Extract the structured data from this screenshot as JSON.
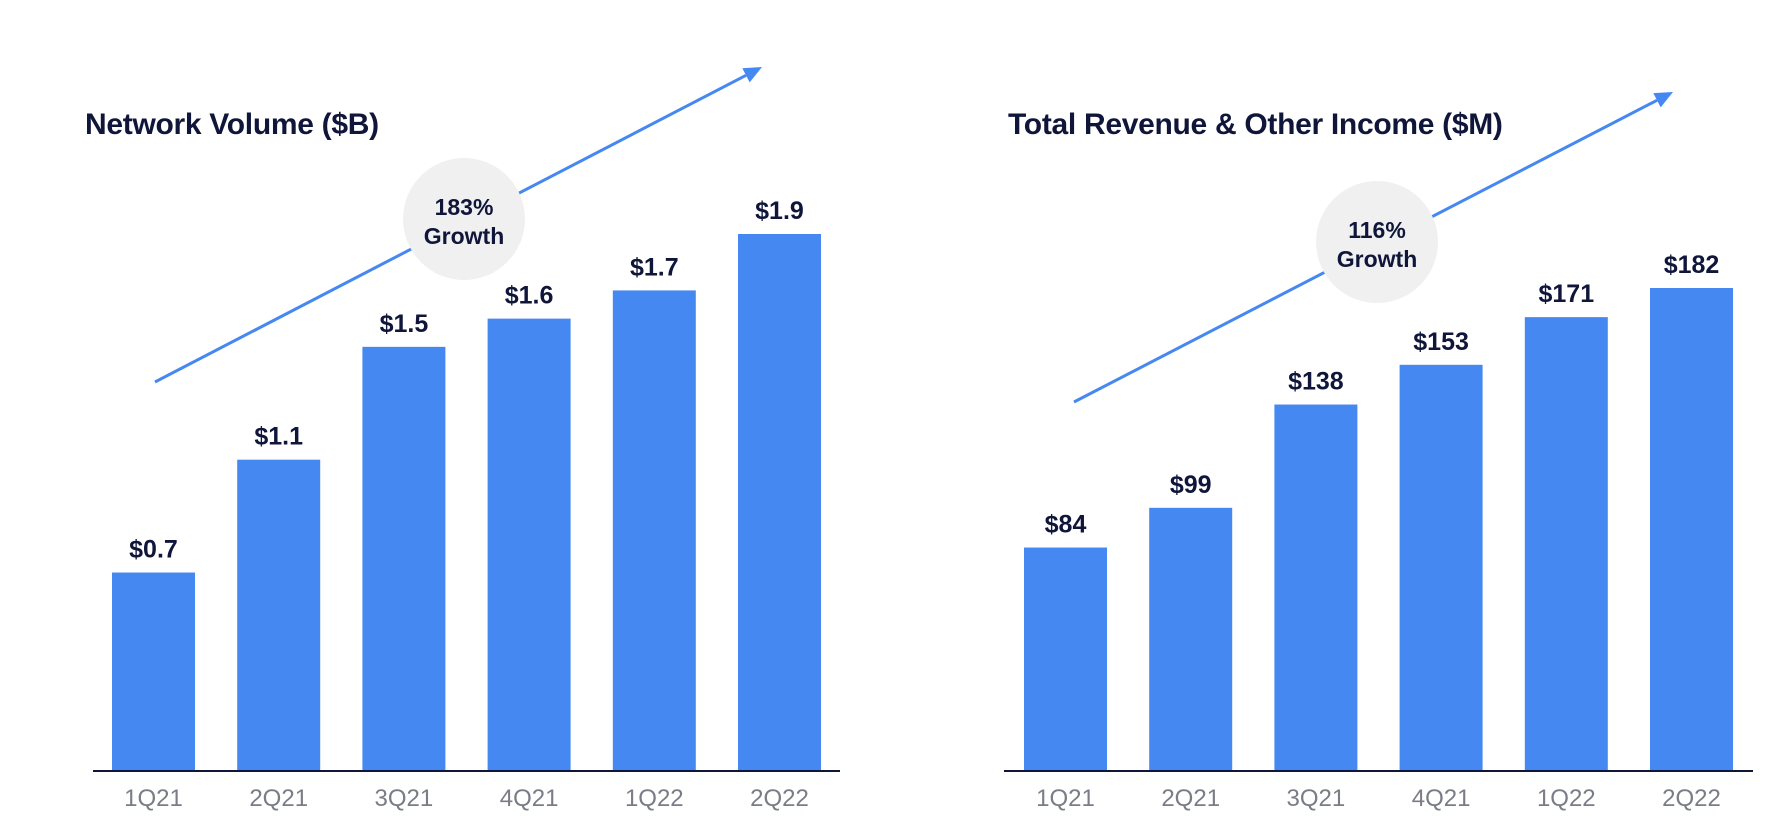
{
  "colors": {
    "bar": "#4688f1",
    "arrow": "#4688f1",
    "axis": "#10163a",
    "growth_circle": "#f0f0f0"
  },
  "chart_data": [
    {
      "type": "bar",
      "title": "Network Volume ($B)",
      "categories": [
        "1Q21",
        "2Q21",
        "3Q21",
        "4Q21",
        "1Q22",
        "2Q22"
      ],
      "values": [
        0.7,
        1.1,
        1.5,
        1.6,
        1.7,
        1.9
      ],
      "data_labels": [
        "$0.7",
        "$1.1",
        "$1.5",
        "$1.6",
        "$1.7",
        "$1.9"
      ],
      "ylim": [
        0,
        1.9
      ],
      "grid": false,
      "annotation": {
        "line1": "183%",
        "line2": "Growth"
      }
    },
    {
      "type": "bar",
      "title": "Total Revenue & Other Income ($M)",
      "categories": [
        "1Q21",
        "2Q21",
        "3Q21",
        "4Q21",
        "1Q22",
        "2Q22"
      ],
      "values": [
        84,
        99,
        138,
        153,
        171,
        182
      ],
      "data_labels": [
        "$84",
        "$99",
        "$138",
        "$153",
        "$171",
        "$182"
      ],
      "ylim": [
        0,
        182
      ],
      "grid": false,
      "annotation": {
        "line1": "116%",
        "line2": "Growth"
      }
    }
  ]
}
